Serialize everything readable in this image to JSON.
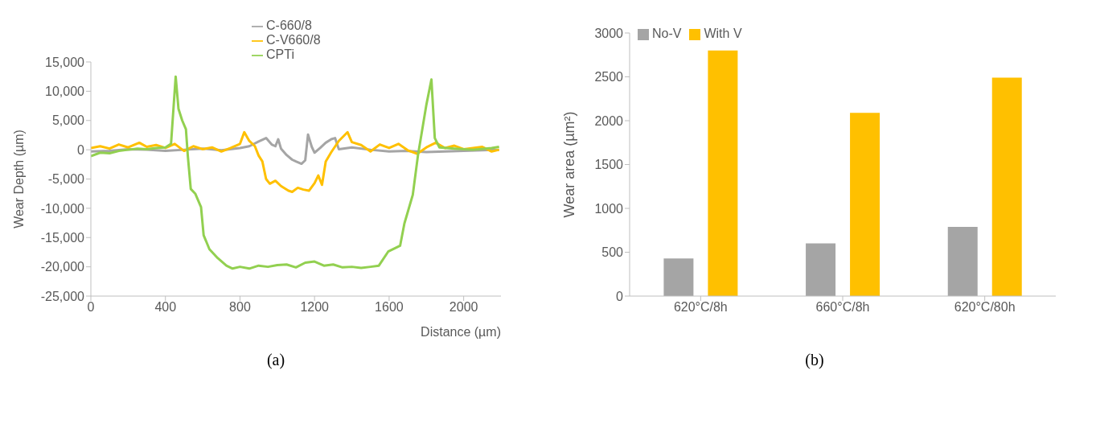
{
  "chart_data": [
    {
      "type": "line",
      "xlabel": "Distance (µm)",
      "ylabel": "Wear Depth (µm)",
      "annotations": [
        "(a)"
      ],
      "legend": "top",
      "grid": false,
      "marker": "none",
      "line_style": "solid",
      "xlim": [
        0,
        2200
      ],
      "xticks": [
        0,
        400,
        800,
        1200,
        1600,
        2000
      ],
      "ylim": [
        -25000,
        15000
      ],
      "yticks": [
        {
          "value": 15000,
          "label": "15,000"
        },
        {
          "value": 10000,
          "label": "10,000"
        },
        {
          "value": 5000,
          "label": "5,000"
        },
        0,
        {
          "value": -5000,
          "label": "-5,000"
        },
        {
          "value": -10000,
          "label": "-10,000"
        },
        {
          "value": -15000,
          "label": "-15,000"
        },
        {
          "value": -20000,
          "label": "-20,000"
        },
        {
          "value": -25000,
          "label": "-25,000"
        }
      ],
      "series": [
        {
          "name": "C-660/8",
          "color": "#a5a5a5",
          "x": [
            0,
            100,
            200,
            300,
            400,
            500,
            600,
            700,
            800,
            850,
            900,
            940,
            970,
            990,
            1005,
            1020,
            1050,
            1080,
            1100,
            1130,
            1150,
            1165,
            1185,
            1200,
            1230,
            1260,
            1290,
            1310,
            1330,
            1400,
            1500,
            1600,
            1700,
            1800,
            1900,
            2000,
            2100,
            2190
          ],
          "values": [
            -300,
            -200,
            100,
            0,
            -200,
            0,
            200,
            -100,
            300,
            600,
            1400,
            2000,
            900,
            600,
            1800,
            200,
            -900,
            -1700,
            -2000,
            -2400,
            -1800,
            2600,
            500,
            -500,
            300,
            1200,
            1800,
            2000,
            100,
            400,
            0,
            -300,
            -200,
            -400,
            -300,
            -200,
            -100,
            0
          ]
        },
        {
          "name": "C-V660/8",
          "color": "#ffc000",
          "x": [
            0,
            50,
            100,
            150,
            200,
            260,
            300,
            350,
            400,
            450,
            500,
            550,
            600,
            650,
            700,
            750,
            800,
            823,
            850,
            880,
            900,
            920,
            940,
            960,
            990,
            1020,
            1060,
            1080,
            1110,
            1140,
            1170,
            1200,
            1220,
            1240,
            1260,
            1290,
            1330,
            1377,
            1400,
            1450,
            1500,
            1550,
            1600,
            1650,
            1700,
            1750,
            1800,
            1850,
            1900,
            1950,
            2000,
            2100,
            2150,
            2190
          ],
          "values": [
            300,
            600,
            200,
            900,
            400,
            1200,
            500,
            800,
            300,
            1000,
            -200,
            600,
            100,
            400,
            -300,
            300,
            1000,
            3000,
            1500,
            600,
            -1000,
            -2000,
            -5000,
            -5800,
            -5300,
            -6200,
            -7000,
            -7200,
            -6500,
            -6800,
            -7000,
            -5700,
            -4400,
            -6000,
            -2000,
            -400,
            1500,
            3000,
            1300,
            800,
            -300,
            900,
            300,
            1000,
            -100,
            -700,
            400,
            1200,
            300,
            700,
            100,
            500,
            -300,
            0
          ]
        },
        {
          "name": "CPTi",
          "color": "#92d050",
          "x": [
            0,
            50,
            100,
            150,
            200,
            250,
            300,
            350,
            400,
            430,
            455,
            470,
            490,
            510,
            520,
            536,
            560,
            591,
            605,
            636,
            680,
            727,
            760,
            800,
            850,
            900,
            950,
            1000,
            1050,
            1100,
            1150,
            1200,
            1250,
            1300,
            1350,
            1400,
            1450,
            1500,
            1545,
            1595,
            1659,
            1682,
            1727,
            1755,
            1800,
            1827,
            1845,
            1870,
            1950,
            2050,
            2150,
            2190
          ],
          "values": [
            -1100,
            -500,
            -600,
            -200,
            0,
            200,
            100,
            300,
            400,
            1000,
            12500,
            7000,
            5000,
            3500,
            -1000,
            -6700,
            -7500,
            -9800,
            -14600,
            -17000,
            -18500,
            -19800,
            -20300,
            -20000,
            -20300,
            -19800,
            -20000,
            -19700,
            -19600,
            -20100,
            -19300,
            -19100,
            -19800,
            -19600,
            -20100,
            -20000,
            -20200,
            -20000,
            -19800,
            -17400,
            -16400,
            -12600,
            -7700,
            -900,
            7700,
            12000,
            2000,
            400,
            200,
            0,
            300,
            500
          ]
        }
      ]
    },
    {
      "type": "bar",
      "ylabel": "Wear area (µm²)",
      "annotations": [
        "(b)"
      ],
      "legend": "top",
      "grid": false,
      "categories": [
        "620°C/8h",
        "660°C/8h",
        "620°C/80h"
      ],
      "ylim": [
        0,
        3000
      ],
      "yticks": [
        0,
        500,
        1000,
        1500,
        2000,
        2500,
        3000
      ],
      "series": [
        {
          "name": "No-V",
          "color": "#a5a5a5",
          "values": [
            430,
            600,
            790
          ]
        },
        {
          "name": "With V",
          "color": "#ffc000",
          "values": [
            2800,
            2090,
            2490
          ]
        }
      ]
    }
  ]
}
